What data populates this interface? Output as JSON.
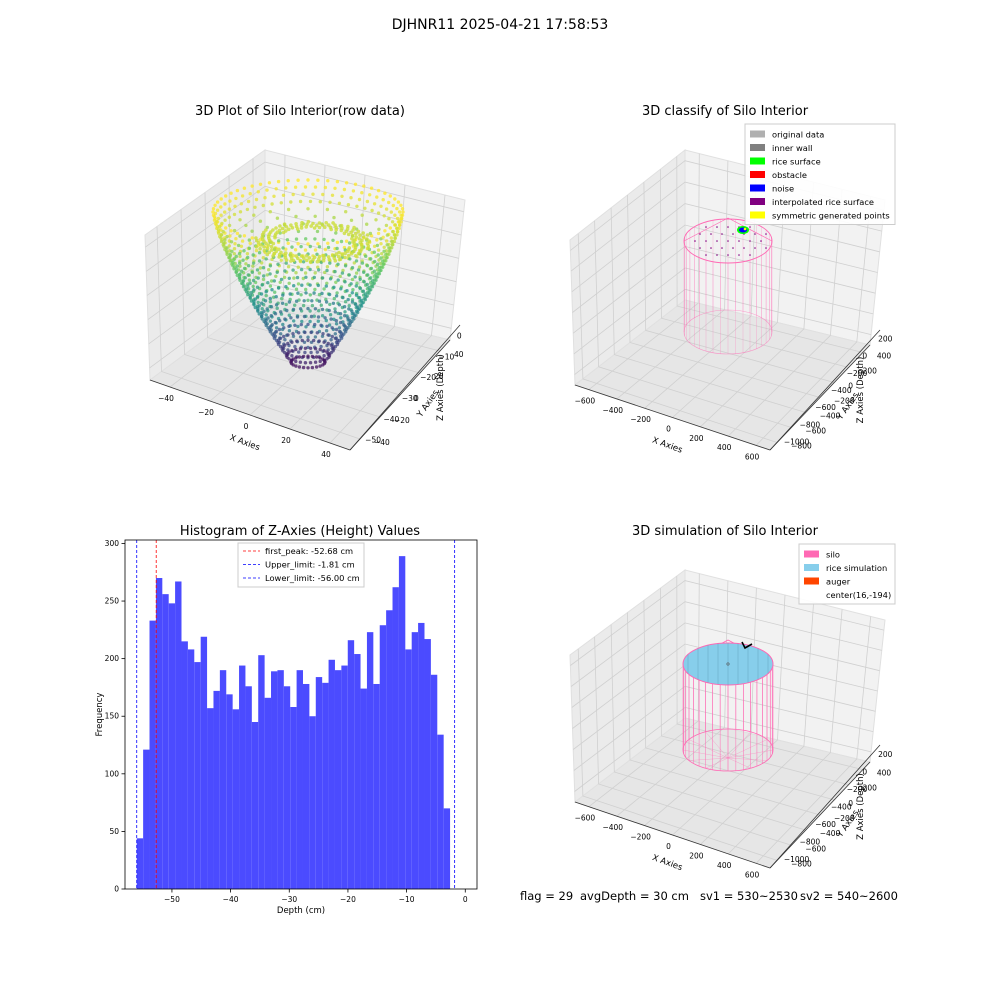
{
  "figure": {
    "suptitle": "DJHNR11 2025-04-21 17:58:53",
    "footer": {
      "flag": "flag = 29",
      "avg_depth": "avgDepth = 30 cm",
      "sv1": "sv1 = 530~2530",
      "sv2": "sv2 = 540~2600"
    }
  },
  "colors": {
    "silo": "#ff69b4",
    "rice_simulation": "#87ceeb",
    "auger": "#ff4500",
    "histogram": "#4b4bff",
    "peak_line": "#ff0000",
    "limit_line": "#0000ff",
    "viridis": [
      "#440154",
      "#3b528b",
      "#21918c",
      "#5ec962",
      "#fde725"
    ]
  },
  "chart_data": [
    {
      "type": "scatter3d",
      "title": "3D Plot of Silo Interior(row data)",
      "xlabel": "X Axies",
      "ylabel": "Y Axies",
      "zlabel": "Z Axies (Depth)",
      "xticks": [
        "−40",
        "−20",
        "0",
        "20",
        "40"
      ],
      "yticks": [
        "−40",
        "−20",
        "0",
        "20",
        "40"
      ],
      "zticks": [
        "0",
        "−10",
        "−20",
        "−30",
        "−40",
        "−50"
      ],
      "xlim": [
        -45,
        45
      ],
      "ylim": [
        -45,
        45
      ],
      "zlim": [
        -58,
        2
      ],
      "colormap": "viridis"
    },
    {
      "type": "scatter3d",
      "title": "3D classify of Silo Interior",
      "xlabel": "X Axies",
      "ylabel": "Y Axies",
      "zlabel": "Z Axies (Depth)",
      "xticks": [
        "−600",
        "−400",
        "−200",
        "0",
        "200",
        "400",
        "600"
      ],
      "yticks": [
        "−800",
        "−600",
        "−400",
        "−200",
        "0",
        "200",
        "400"
      ],
      "zticks": [
        "200",
        "0",
        "−200",
        "−400",
        "−600",
        "−800",
        "−1000"
      ],
      "legend_position": "top-right",
      "legend": [
        {
          "label": "original data",
          "color": "#b0b0b0"
        },
        {
          "label": "inner wall",
          "color": "#808080"
        },
        {
          "label": "rice surface",
          "color": "#00ff00"
        },
        {
          "label": "obstacle",
          "color": "#ff0000"
        },
        {
          "label": "noise",
          "color": "#0000ff"
        },
        {
          "label": "interpolated rice surface",
          "color": "#800080"
        },
        {
          "label": "symmetric generated points",
          "color": "#ffff00"
        }
      ]
    },
    {
      "type": "bar",
      "title": "Histogram of Z-Axies (Height) Values",
      "xlabel": "Depth (cm)",
      "ylabel": "Frequency",
      "xlim": [
        -58,
        2
      ],
      "ylim": [
        0,
        303
      ],
      "xticks": [
        -50,
        -40,
        -30,
        -20,
        -10,
        0
      ],
      "yticks": [
        0,
        50,
        100,
        150,
        200,
        250,
        300
      ],
      "bin_start": -56.0,
      "bin_width": 1.09,
      "values": [
        44,
        121,
        233,
        270,
        256,
        248,
        267,
        215,
        208,
        197,
        219,
        157,
        172,
        190,
        169,
        156,
        194,
        176,
        145,
        203,
        166,
        189,
        190,
        176,
        158,
        190,
        178,
        150,
        184,
        179,
        199,
        190,
        194,
        216,
        204,
        174,
        223,
        178,
        229,
        242,
        262,
        289,
        208,
        223,
        231,
        217,
        186,
        134,
        70
      ],
      "legend_position": "top-center",
      "vlines": [
        {
          "label": "first_peak: -52.68 cm",
          "x": -52.68,
          "color": "#ff0000"
        },
        {
          "label": "Upper_limit: -1.81 cm",
          "x": -1.81,
          "color": "#0000ff"
        },
        {
          "label": "Lower_limit: -56.00 cm",
          "x": -56.0,
          "color": "#0000ff"
        }
      ]
    },
    {
      "type": "scatter3d",
      "title": "3D simulation of Silo Interior",
      "xlabel": "X Axies",
      "ylabel": "Y Axies",
      "zlabel": "Z Axies (Depth)",
      "xticks": [
        "−600",
        "−400",
        "−200",
        "0",
        "200",
        "400",
        "600"
      ],
      "yticks": [
        "−800",
        "−600",
        "−400",
        "−200",
        "0",
        "200",
        "400"
      ],
      "zticks": [
        "200",
        "0",
        "−200",
        "−400",
        "−600",
        "−800",
        "−1000"
      ],
      "legend_position": "top-right",
      "legend": [
        {
          "label": "silo",
          "color": "#ff69b4"
        },
        {
          "label": "rice simulation",
          "color": "#87ceeb"
        },
        {
          "label": "auger",
          "color": "#ff4500"
        },
        {
          "label": "center(16,-194)",
          "color": ""
        }
      ]
    }
  ]
}
